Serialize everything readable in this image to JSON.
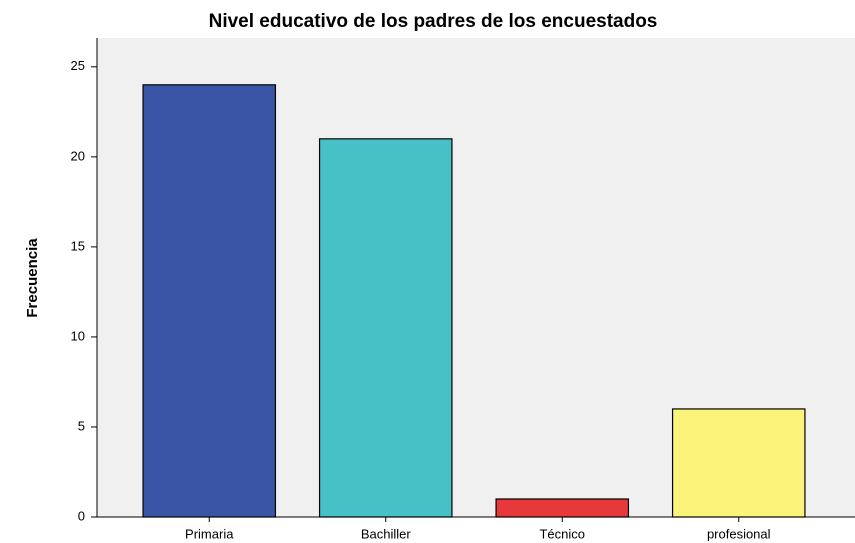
{
  "chart_data": {
    "type": "bar",
    "title": "Nivel educativo de los padres de los encuestados",
    "y_label": "Frecuencia",
    "categories": [
      "Primaria",
      "Bachiller",
      "Técnico",
      "profesional"
    ],
    "values": [
      24,
      21,
      1,
      6
    ],
    "colors": [
      "#3b55a6",
      "#47c1c5",
      "#e8393a",
      "#fbf37a"
    ],
    "ylim": [
      0,
      26.6
    ],
    "yticks": [
      0,
      5,
      10,
      15,
      20,
      25
    ],
    "grid": false
  }
}
